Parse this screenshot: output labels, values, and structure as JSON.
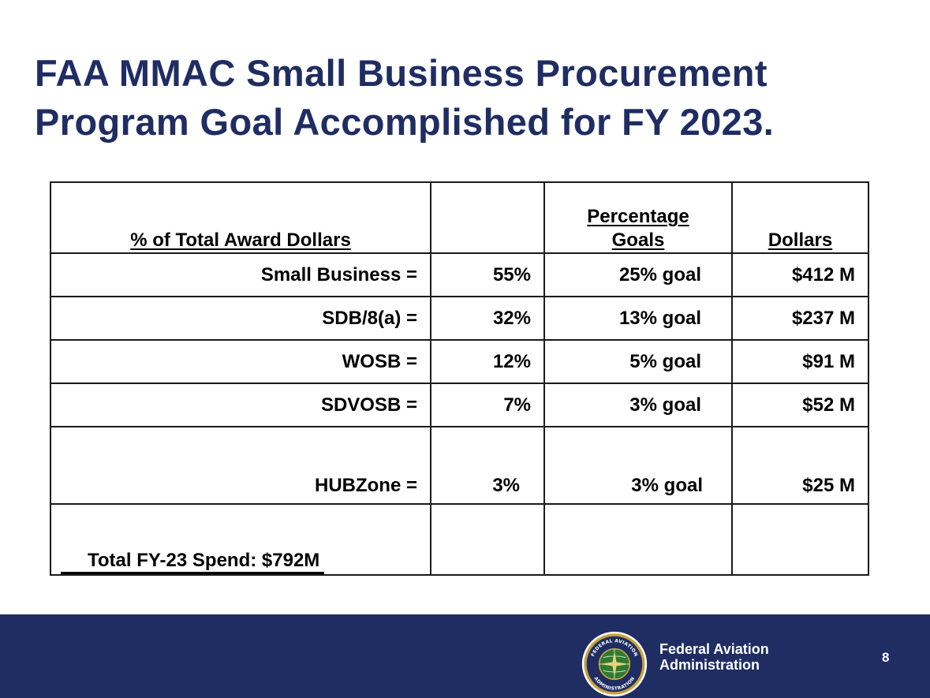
{
  "slide": {
    "title_line1": "FAA MMAC Small Business Procurement",
    "title_line2": "Program Goal Accomplished for FY 2023.",
    "page_number": "8"
  },
  "table": {
    "headers": {
      "category": "% of Total Award Dollars",
      "goals_line1": "Percentage",
      "goals_line2": "Goals",
      "dollars": "Dollars"
    },
    "rows": [
      {
        "label": "Small Business =",
        "percent": "55%",
        "goal": "25% goal",
        "dollars": "$412 M"
      },
      {
        "label": "SDB/8(a) =",
        "percent": "32%",
        "goal": "13% goal",
        "dollars": "$237 M"
      },
      {
        "label": "WOSB =",
        "percent": "12%",
        "goal": "5% goal",
        "dollars": "$91 M"
      },
      {
        "label": "SDVOSB =",
        "percent": "7%",
        "goal": "3% goal",
        "dollars": "$52 M"
      },
      {
        "label": "HUBZone =",
        "percent": "3%",
        "goal": "3% goal",
        "dollars": "$25 M"
      }
    ],
    "total": "Total FY-23 Spend: $792M"
  },
  "footer": {
    "agency_line1": "Federal Aviation",
    "agency_line2": "Administration",
    "seal_text_top": "FEDERAL AVIATION",
    "seal_text_bottom": "ADMINISTRATION",
    "seal_icon": "faa-seal-icon"
  },
  "colors": {
    "brand_navy": "#1f2d63",
    "seal_gold": "#c9a23a",
    "globe_green": "#2f7a34"
  }
}
